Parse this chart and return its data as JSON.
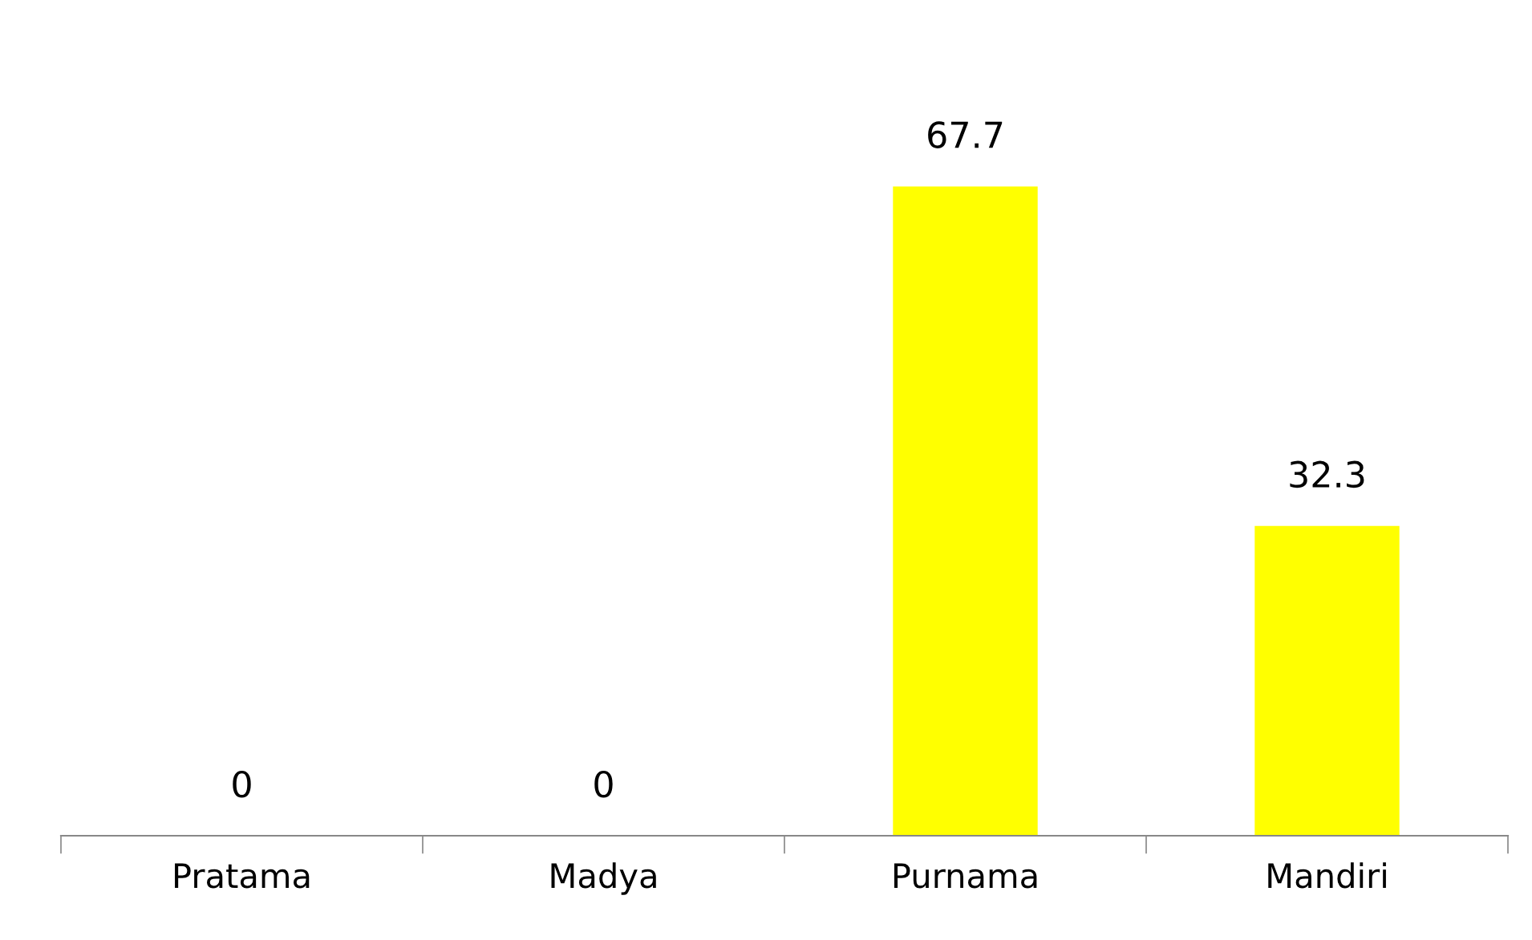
{
  "chart_data": {
    "type": "bar",
    "categories": [
      "Pratama",
      "Madya",
      "Purnama",
      "Mandiri"
    ],
    "values": [
      0,
      0,
      67.7,
      32.3
    ],
    "color": "#ffff00",
    "data_labels": true,
    "grid": false,
    "legend": false
  }
}
